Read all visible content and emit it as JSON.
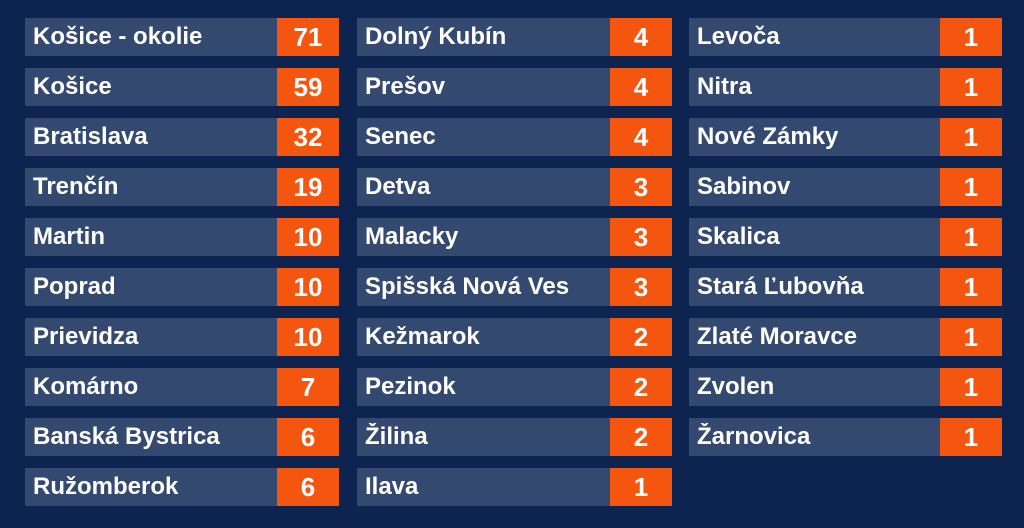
{
  "columns": [
    [
      {
        "name": "Košice - okolie",
        "count": "71"
      },
      {
        "name": "Košice",
        "count": "59"
      },
      {
        "name": "Bratislava",
        "count": "32"
      },
      {
        "name": "Trenčín",
        "count": "19"
      },
      {
        "name": "Martin",
        "count": "10"
      },
      {
        "name": "Poprad",
        "count": "10"
      },
      {
        "name": "Prievidza",
        "count": "10"
      },
      {
        "name": "Komárno",
        "count": "7"
      },
      {
        "name": "Banská Bystrica",
        "count": "6"
      },
      {
        "name": "Ružomberok",
        "count": "6"
      }
    ],
    [
      {
        "name": "Dolný Kubín",
        "count": "4"
      },
      {
        "name": "Prešov",
        "count": "4"
      },
      {
        "name": "Senec",
        "count": "4"
      },
      {
        "name": "Detva",
        "count": "3"
      },
      {
        "name": "Malacky",
        "count": "3"
      },
      {
        "name": "Spišská Nová Ves",
        "count": "3"
      },
      {
        "name": "Kežmarok",
        "count": "2"
      },
      {
        "name": "Pezinok",
        "count": "2"
      },
      {
        "name": "Žilina",
        "count": "2"
      },
      {
        "name": "Ilava",
        "count": "1"
      }
    ],
    [
      {
        "name": "Levoča",
        "count": "1"
      },
      {
        "name": "Nitra",
        "count": "1"
      },
      {
        "name": "Nové Zámky",
        "count": "1"
      },
      {
        "name": "Sabinov",
        "count": "1"
      },
      {
        "name": "Skalica",
        "count": "1"
      },
      {
        "name": "Stará Ľubovňa",
        "count": "1"
      },
      {
        "name": "Zlaté Moravce",
        "count": "1"
      },
      {
        "name": "Zvolen",
        "count": "1"
      },
      {
        "name": "Žarnovica",
        "count": "1"
      }
    ]
  ],
  "colors": {
    "background": "#0d2451",
    "row": "#34496f",
    "count_box": "#f4550f",
    "text": "#ffffff"
  }
}
